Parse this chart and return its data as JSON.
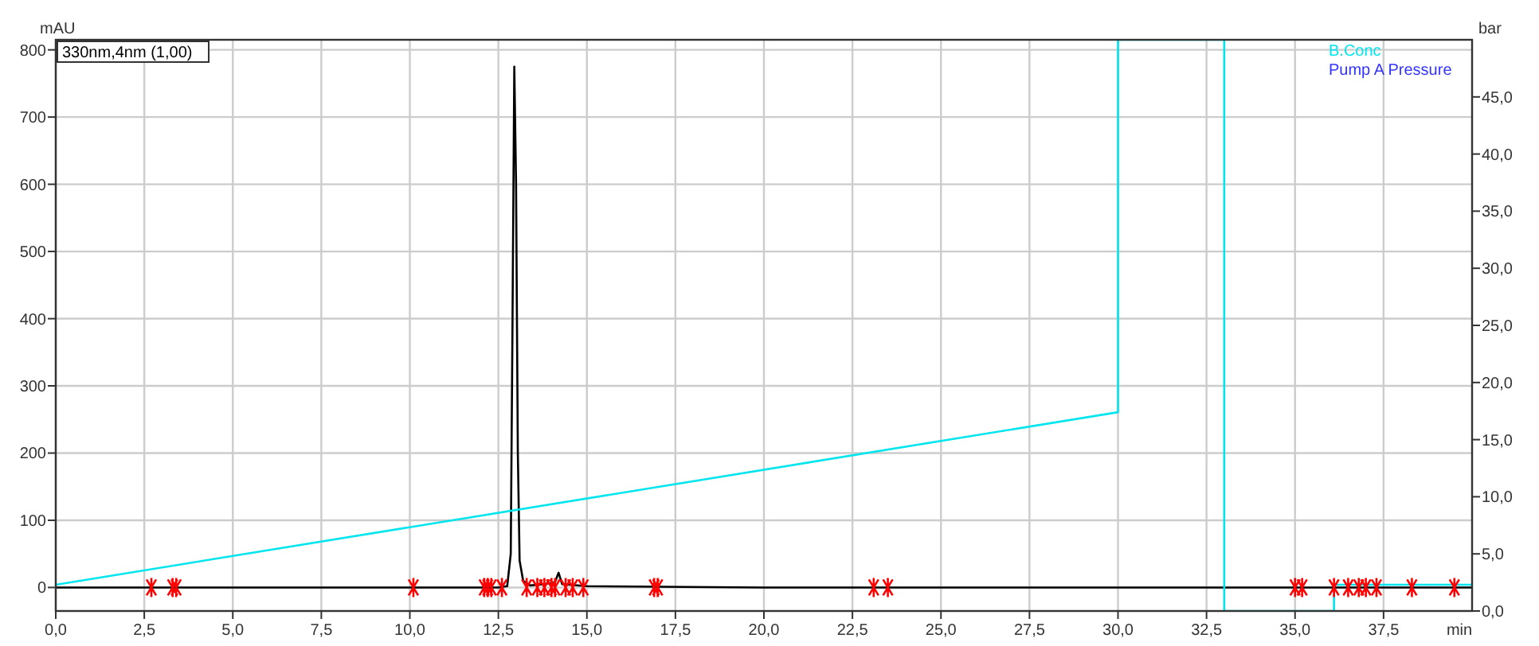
{
  "chart_data": {
    "type": "line",
    "xlabel": "min",
    "ylabel": "mAU",
    "y2label": "bar",
    "xlim": [
      0,
      40
    ],
    "ylim": [
      -35,
      815
    ],
    "y2lim": [
      0,
      50
    ],
    "xticks": [
      {
        "value": 0,
        "label": "0,0"
      },
      {
        "value": 2.5,
        "label": "2,5"
      },
      {
        "value": 5,
        "label": "5,0"
      },
      {
        "value": 7.5,
        "label": "7,5"
      },
      {
        "value": 10,
        "label": "10,0"
      },
      {
        "value": 12.5,
        "label": "12,5"
      },
      {
        "value": 15,
        "label": "15,0"
      },
      {
        "value": 17.5,
        "label": "17,5"
      },
      {
        "value": 20,
        "label": "20,0"
      },
      {
        "value": 22.5,
        "label": "22,5"
      },
      {
        "value": 25,
        "label": "25,0"
      },
      {
        "value": 27.5,
        "label": "27,5"
      },
      {
        "value": 30,
        "label": "30,0"
      },
      {
        "value": 32.5,
        "label": "32,5"
      },
      {
        "value": 35,
        "label": "35,0"
      },
      {
        "value": 37.5,
        "label": "37,5"
      }
    ],
    "yticks": [
      0,
      100,
      200,
      300,
      400,
      500,
      600,
      700,
      800
    ],
    "y2ticks": [
      {
        "value": 0,
        "label": "0,0"
      },
      {
        "value": 5,
        "label": "5,0"
      },
      {
        "value": 10,
        "label": "10,0"
      },
      {
        "value": 15,
        "label": "15,0"
      },
      {
        "value": 20,
        "label": "20,0"
      },
      {
        "value": 25,
        "label": "25,0"
      },
      {
        "value": 30,
        "label": "30,0"
      },
      {
        "value": 35,
        "label": "35,0"
      },
      {
        "value": 40,
        "label": "40,0"
      },
      {
        "value": 45,
        "label": "45,0"
      }
    ],
    "grid": true,
    "legend": "top right",
    "line_style": "solid",
    "marker": "none",
    "series": [
      {
        "name": "330nm,4nm (1,00)",
        "color": "#000000",
        "x": [
          0,
          12.5,
          12.75,
          12.85,
          12.9,
          12.95,
          13.0,
          13.05,
          13.1,
          13.2,
          13.4,
          13.8,
          14.1,
          14.2,
          14.3,
          15,
          20,
          40
        ],
        "values": [
          0,
          0,
          2,
          50,
          400,
          775,
          600,
          200,
          40,
          10,
          3,
          5,
          8,
          22,
          5,
          2,
          0,
          0
        ]
      },
      {
        "name": "B.Conc",
        "color": "#00e5ee",
        "axis": "y2",
        "x": [
          0,
          30,
          30,
          33,
          33,
          36.1,
          36.1,
          40
        ],
        "values": [
          2.3,
          17.4,
          50,
          50,
          0,
          0,
          2.3,
          2.3
        ]
      },
      {
        "name": "Pump A Pressure",
        "color": "#3333ff",
        "axis": "y2"
      },
      {
        "type": "scatter",
        "color": "#ff0000",
        "marker": "cross",
        "x": [
          2.7,
          3.3,
          3.4,
          10.1,
          12.1,
          12.2,
          12.3,
          12.6,
          13.3,
          13.6,
          13.8,
          14.0,
          14.1,
          14.4,
          14.6,
          14.9,
          16.9,
          17.0,
          23.1,
          23.5,
          35.0,
          35.2,
          36.1,
          36.5,
          36.8,
          37.0,
          37.3,
          38.3,
          39.5
        ],
        "values": [
          0,
          0,
          0,
          0,
          0,
          0,
          0,
          0,
          0,
          0,
          0,
          0,
          0,
          0,
          0,
          0,
          0,
          0,
          0,
          0,
          0,
          0,
          0,
          0,
          0,
          0,
          0,
          0,
          0
        ]
      }
    ]
  }
}
